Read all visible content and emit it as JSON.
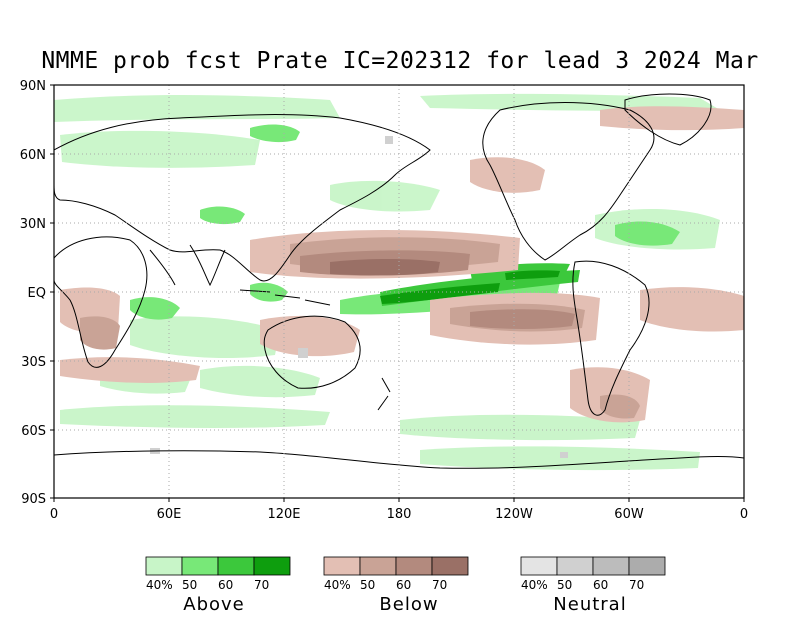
{
  "title": "NMME prob fcst Prate IC=202312 for lead 3 2024 Mar",
  "axes": {
    "lat_labels": [
      "90N",
      "60N",
      "30N",
      "EQ",
      "30S",
      "60S",
      "90S"
    ],
    "lon_labels": [
      "0",
      "60E",
      "120E",
      "180",
      "120W",
      "60W",
      "0"
    ]
  },
  "legends": [
    {
      "name": "Above",
      "labels": [
        "40%",
        "50",
        "60",
        "70"
      ],
      "colors": [
        "#c8f5c8",
        "#78e878",
        "#3cc83c",
        "#0e9e0e"
      ]
    },
    {
      "name": "Below",
      "labels": [
        "40%",
        "50",
        "60",
        "70"
      ],
      "colors": [
        "#e3bfb4",
        "#c9a396",
        "#b38a7e",
        "#9a7066"
      ]
    },
    {
      "name": "Neutral",
      "labels": [
        "40%",
        "50",
        "60",
        "70"
      ],
      "colors": [
        "#e4e4e4",
        "#d0d0d0",
        "#bcbcbc",
        "#acacac"
      ]
    }
  ],
  "colors": {
    "land_outline": "#000000",
    "grid": "#aaaaaa",
    "frame": "#000000"
  }
}
